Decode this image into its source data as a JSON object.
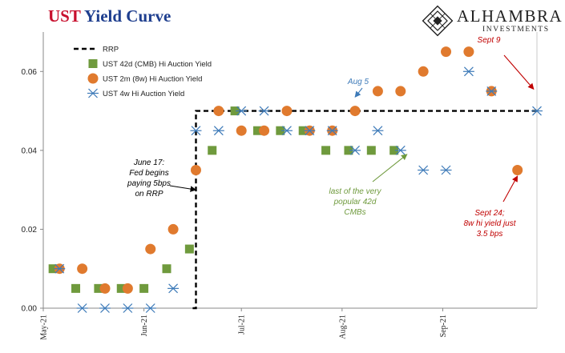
{
  "header": {
    "title_part1": "UST",
    "title_part2": "Yield Curve",
    "logo_name": "ALHAMBRA",
    "logo_sub": "INVESTMENTS"
  },
  "colors": {
    "rrp": "#000000",
    "cmb42": "#6f9a3d",
    "bill2m": "#e07a2e",
    "bill4w": "#3d7ab8",
    "title_red": "#c8102e",
    "title_blue": "#1f3f8f",
    "annotation_red": "#c00000",
    "annotation_green": "#6f9a3d",
    "annotation_blue": "#3d7ab8"
  },
  "chart_data": {
    "type": "line+scatter",
    "ylim": [
      0,
      0.07
    ],
    "y_ticks": [
      "0.00",
      "0.02",
      "0.04",
      "0.06"
    ],
    "x_ticks": [
      "May-21",
      "Jun-21",
      "Jul-21",
      "Aug-21",
      "Sep-21"
    ],
    "x_range": [
      "2021-05-01",
      "2021-09-30"
    ],
    "legend_position": "top-left",
    "grid": false,
    "series": [
      {
        "name": "RRP",
        "kind": "step-line",
        "style": "dashed",
        "points": [
          {
            "date": "2021-06-16",
            "y": 0.0
          },
          {
            "date": "2021-06-17",
            "y": 0.0
          },
          {
            "date": "2021-06-17",
            "y": 0.05
          },
          {
            "date": "2021-09-30",
            "y": 0.05
          }
        ]
      },
      {
        "name": "UST 42d (CMB) Hi Auction Yield",
        "kind": "scatter",
        "marker": "square",
        "points": [
          {
            "date": "2021-05-04",
            "y": 0.01
          },
          {
            "date": "2021-05-11",
            "y": 0.005
          },
          {
            "date": "2021-05-18",
            "y": 0.005
          },
          {
            "date": "2021-05-25",
            "y": 0.005
          },
          {
            "date": "2021-06-01",
            "y": 0.005
          },
          {
            "date": "2021-06-08",
            "y": 0.01
          },
          {
            "date": "2021-06-15",
            "y": 0.015
          },
          {
            "date": "2021-06-22",
            "y": 0.04
          },
          {
            "date": "2021-06-29",
            "y": 0.05
          },
          {
            "date": "2021-07-06",
            "y": 0.045
          },
          {
            "date": "2021-07-13",
            "y": 0.045
          },
          {
            "date": "2021-07-20",
            "y": 0.045
          },
          {
            "date": "2021-07-27",
            "y": 0.04
          },
          {
            "date": "2021-08-03",
            "y": 0.04
          },
          {
            "date": "2021-08-10",
            "y": 0.04
          },
          {
            "date": "2021-08-17",
            "y": 0.04
          }
        ]
      },
      {
        "name": "UST 2m (8w) Hi Auction Yield",
        "kind": "scatter",
        "marker": "circle",
        "points": [
          {
            "date": "2021-05-06",
            "y": 0.01
          },
          {
            "date": "2021-05-13",
            "y": 0.01
          },
          {
            "date": "2021-05-20",
            "y": 0.005
          },
          {
            "date": "2021-05-27",
            "y": 0.005
          },
          {
            "date": "2021-06-03",
            "y": 0.015
          },
          {
            "date": "2021-06-10",
            "y": 0.02
          },
          {
            "date": "2021-06-17",
            "y": 0.035
          },
          {
            "date": "2021-06-24",
            "y": 0.05
          },
          {
            "date": "2021-07-01",
            "y": 0.045
          },
          {
            "date": "2021-07-08",
            "y": 0.045
          },
          {
            "date": "2021-07-15",
            "y": 0.05
          },
          {
            "date": "2021-07-22",
            "y": 0.045
          },
          {
            "date": "2021-07-29",
            "y": 0.045
          },
          {
            "date": "2021-08-05",
            "y": 0.05
          },
          {
            "date": "2021-08-12",
            "y": 0.055
          },
          {
            "date": "2021-08-19",
            "y": 0.055
          },
          {
            "date": "2021-08-26",
            "y": 0.06
          },
          {
            "date": "2021-09-02",
            "y": 0.065
          },
          {
            "date": "2021-09-09",
            "y": 0.065
          },
          {
            "date": "2021-09-16",
            "y": 0.055
          },
          {
            "date": "2021-09-24",
            "y": 0.035
          }
        ]
      },
      {
        "name": "UST 4w Hi Auction Yield",
        "kind": "scatter",
        "marker": "asterisk",
        "points": [
          {
            "date": "2021-05-06",
            "y": 0.01
          },
          {
            "date": "2021-05-13",
            "y": 0.0
          },
          {
            "date": "2021-05-20",
            "y": 0.0
          },
          {
            "date": "2021-05-27",
            "y": 0.0
          },
          {
            "date": "2021-06-03",
            "y": 0.0
          },
          {
            "date": "2021-06-10",
            "y": 0.005
          },
          {
            "date": "2021-06-17",
            "y": 0.045
          },
          {
            "date": "2021-06-24",
            "y": 0.045
          },
          {
            "date": "2021-07-01",
            "y": 0.05
          },
          {
            "date": "2021-07-08",
            "y": 0.05
          },
          {
            "date": "2021-07-15",
            "y": 0.045
          },
          {
            "date": "2021-07-22",
            "y": 0.045
          },
          {
            "date": "2021-07-29",
            "y": 0.045
          },
          {
            "date": "2021-08-05",
            "y": 0.04
          },
          {
            "date": "2021-08-12",
            "y": 0.045
          },
          {
            "date": "2021-08-19",
            "y": 0.04
          },
          {
            "date": "2021-08-26",
            "y": 0.035
          },
          {
            "date": "2021-09-02",
            "y": 0.035
          },
          {
            "date": "2021-09-09",
            "y": 0.06
          },
          {
            "date": "2021-09-16",
            "y": 0.055
          },
          {
            "date": "2021-09-30",
            "y": 0.05
          }
        ]
      }
    ],
    "annotations": [
      {
        "lines": [
          "June 17:",
          "Fed begins",
          "paying 5bps",
          "on RRP"
        ],
        "color": "black",
        "target": {
          "date": "2021-06-17",
          "y": 0.03
        }
      },
      {
        "lines": [
          "Aug 5"
        ],
        "color": "blue",
        "target": {
          "date": "2021-08-05",
          "y": 0.0535
        }
      },
      {
        "lines": [
          "Sept 9"
        ],
        "color": "red",
        "target": {
          "date": "2021-09-29",
          "y": 0.0555
        }
      },
      {
        "lines": [
          "last of the very",
          "popular 42d",
          "CMBs"
        ],
        "color": "green",
        "target": {
          "date": "2021-08-21",
          "y": 0.039
        }
      },
      {
        "lines": [
          "Sept 24;",
          "8w hi yield just",
          "3.5 bps"
        ],
        "color": "red",
        "target": {
          "date": "2021-09-24",
          "y": 0.0335
        }
      }
    ]
  }
}
